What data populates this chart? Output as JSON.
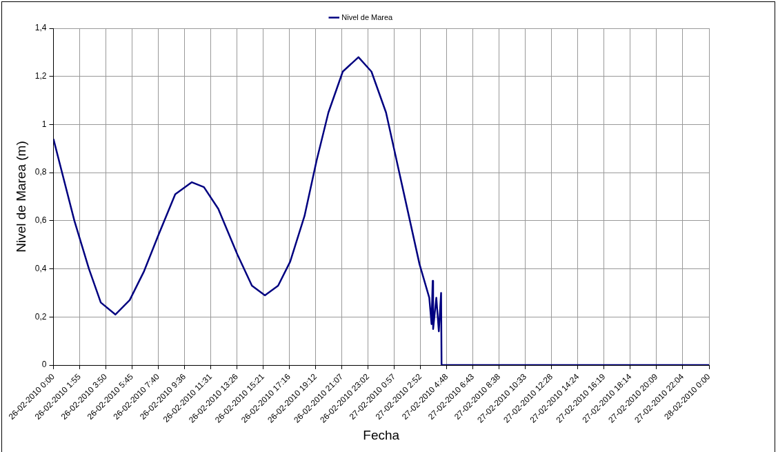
{
  "chart_data": {
    "type": "line",
    "xlabel": "Fecha",
    "ylabel": "Nivel de Marea (m)",
    "legend": "top",
    "grid": true,
    "marker": "none",
    "line_style": "solid",
    "xlim": [
      "2010-02-26T00:00",
      "2010-02-28T00:00"
    ],
    "ylim": [
      0,
      1.4
    ],
    "xticks": [
      {
        "value": "2010-02-26T00:00",
        "label": "26-02-2010 0:00"
      },
      {
        "value": "2010-02-26T01:55",
        "label": "26-02-2010 1:55"
      },
      {
        "value": "2010-02-26T03:50",
        "label": "26-02-2010 3:50"
      },
      {
        "value": "2010-02-26T05:45",
        "label": "26-02-2010 5:45"
      },
      {
        "value": "2010-02-26T07:40",
        "label": "26-02-2010 7:40"
      },
      {
        "value": "2010-02-26T09:36",
        "label": "26-02-2010 9:36"
      },
      {
        "value": "2010-02-26T11:31",
        "label": "26-02-2010 11:31"
      },
      {
        "value": "2010-02-26T13:26",
        "label": "26-02-2010 13:26"
      },
      {
        "value": "2010-02-26T15:21",
        "label": "26-02-2010 15:21"
      },
      {
        "value": "2010-02-26T17:16",
        "label": "26-02-2010 17:16"
      },
      {
        "value": "2010-02-26T19:12",
        "label": "26-02-2010 19:12"
      },
      {
        "value": "2010-02-26T21:07",
        "label": "26-02-2010 21:07"
      },
      {
        "value": "2010-02-26T23:02",
        "label": "26-02-2010 23:02"
      },
      {
        "value": "2010-02-27T00:57",
        "label": "27-02-2010 0:57"
      },
      {
        "value": "2010-02-27T02:52",
        "label": "27-02-2010 2:52"
      },
      {
        "value": "2010-02-27T04:48",
        "label": "27-02-2010 4:48"
      },
      {
        "value": "2010-02-27T06:43",
        "label": "27-02-2010 6:43"
      },
      {
        "value": "2010-02-27T08:38",
        "label": "27-02-2010 8:38"
      },
      {
        "value": "2010-02-27T10:33",
        "label": "27-02-2010 10:33"
      },
      {
        "value": "2010-02-27T12:28",
        "label": "27-02-2010 12:28"
      },
      {
        "value": "2010-02-27T14:24",
        "label": "27-02-2010 14:24"
      },
      {
        "value": "2010-02-27T16:19",
        "label": "27-02-2010 16:19"
      },
      {
        "value": "2010-02-27T18:14",
        "label": "27-02-2010 18:14"
      },
      {
        "value": "2010-02-27T20:09",
        "label": "27-02-2010 20:09"
      },
      {
        "value": "2010-02-27T22:04",
        "label": "27-02-2010 22:04"
      },
      {
        "value": "2010-02-28T00:00",
        "label": "28-02-2010 0:00"
      }
    ],
    "yticks": [
      0,
      {
        "value": 0.2,
        "label": "0,2"
      },
      {
        "value": 0.4,
        "label": "0,4"
      },
      {
        "value": 0.6,
        "label": "0,6"
      },
      {
        "value": 0.8,
        "label": "0,8"
      },
      1,
      {
        "value": 1.2,
        "label": "1,2"
      },
      {
        "value": 1.4,
        "label": "1,4"
      }
    ],
    "series": [
      {
        "name": "Nivel de Marea",
        "color": "#000080",
        "x": [
          "2010-02-26T00:00",
          "2010-02-26T01:32",
          "2010-02-26T02:36",
          "2010-02-26T03:28",
          "2010-02-26T04:32",
          "2010-02-26T05:35",
          "2010-02-26T06:38",
          "2010-02-26T07:41",
          "2010-02-26T08:55",
          "2010-02-26T10:08",
          "2010-02-26T11:01",
          "2010-02-26T12:04",
          "2010-02-26T13:28",
          "2010-02-26T14:32",
          "2010-02-26T15:29",
          "2010-02-26T16:27",
          "2010-02-26T17:20",
          "2010-02-26T18:23",
          "2010-02-26T19:16",
          "2010-02-26T20:08",
          "2010-02-26T21:11",
          "2010-02-26T22:20",
          "2010-02-26T23:17",
          "2010-02-27T00:21",
          "2010-02-27T01:24",
          "2010-02-27T02:48",
          "2010-02-27T03:31",
          "2010-02-27T03:41",
          "2010-02-27T03:46",
          "2010-02-27T03:48",
          "2010-02-27T04:02",
          "2010-02-27T04:13",
          "2010-02-27T04:23",
          "2010-02-27T04:25",
          "2010-02-28T00:00"
        ],
        "values": [
          0.94,
          0.6,
          0.4,
          0.26,
          0.21,
          0.27,
          0.39,
          0.54,
          0.71,
          0.76,
          0.74,
          0.65,
          0.46,
          0.33,
          0.29,
          0.33,
          0.43,
          0.62,
          0.85,
          1.05,
          1.22,
          1.28,
          1.22,
          1.05,
          0.78,
          0.42,
          0.28,
          0.17,
          0.35,
          0.15,
          0.28,
          0.14,
          0.3,
          0,
          0
        ]
      }
    ]
  }
}
